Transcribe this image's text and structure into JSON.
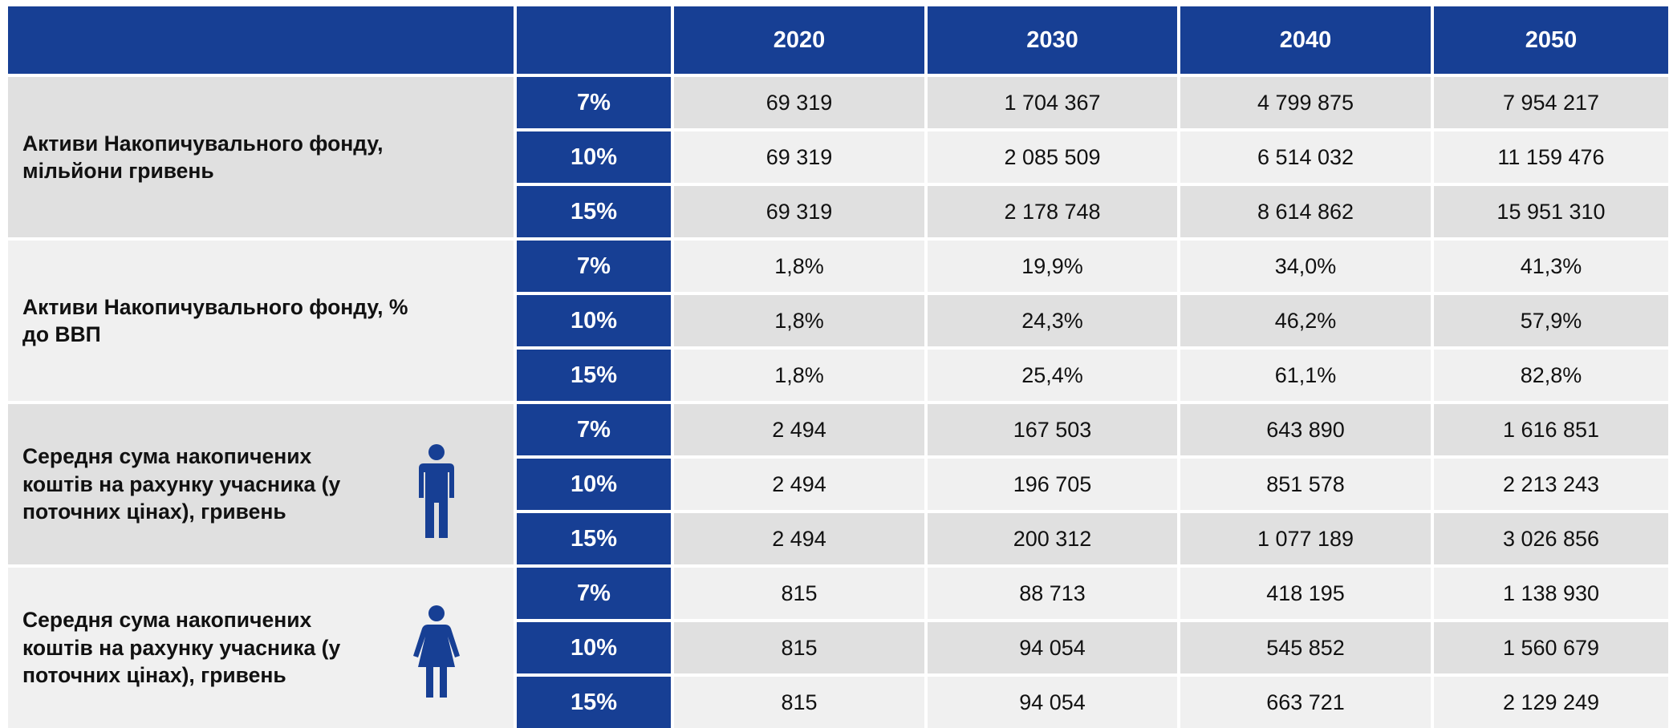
{
  "header": {
    "columns": [
      "2020",
      "2030",
      "2040",
      "2050"
    ]
  },
  "groups": [
    {
      "label": "Активи Накопичувального фонду, мільйони гривень",
      "rows": [
        {
          "rate": "7%",
          "values": [
            "69 319",
            "1 704 367",
            "4 799 875",
            "7 954 217"
          ]
        },
        {
          "rate": "10%",
          "values": [
            "69 319",
            "2 085 509",
            "6 514 032",
            "11 159 476"
          ]
        },
        {
          "rate": "15%",
          "values": [
            "69 319",
            "2 178 748",
            "8 614 862",
            "15 951 310"
          ]
        }
      ]
    },
    {
      "label": "Активи Накопичувального фонду, % до ВВП",
      "rows": [
        {
          "rate": "7%",
          "values": [
            "1,8%",
            "19,9%",
            "34,0%",
            "41,3%"
          ]
        },
        {
          "rate": "10%",
          "values": [
            "1,8%",
            "24,3%",
            "46,2%",
            "57,9%"
          ]
        },
        {
          "rate": "15%",
          "values": [
            "1,8%",
            "25,4%",
            "61,1%",
            "82,8%"
          ]
        }
      ]
    },
    {
      "label": "Середня сума накопичених коштів на рахунку учасника (у поточних цінах), гривень",
      "rows": [
        {
          "rate": "7%",
          "values": [
            "2 494",
            "167 503",
            "643 890",
            "1 616 851"
          ]
        },
        {
          "rate": "10%",
          "values": [
            "2 494",
            "196 705",
            "851 578",
            "2 213 243"
          ]
        },
        {
          "rate": "15%",
          "values": [
            "2 494",
            "200 312",
            "1 077 189",
            "3 026 856"
          ]
        }
      ]
    },
    {
      "label": "Середня сума накопичених коштів на рахунку учасника (у поточних цінах), гривень",
      "rows": [
        {
          "rate": "7%",
          "values": [
            "815",
            "88 713",
            "418 195",
            "1 138 930"
          ]
        },
        {
          "rate": "10%",
          "values": [
            "815",
            "94 054",
            "545 852",
            "1 560 679"
          ]
        },
        {
          "rate": "15%",
          "values": [
            "815",
            "94 054",
            "663 721",
            "2 129 249"
          ]
        }
      ]
    }
  ]
}
